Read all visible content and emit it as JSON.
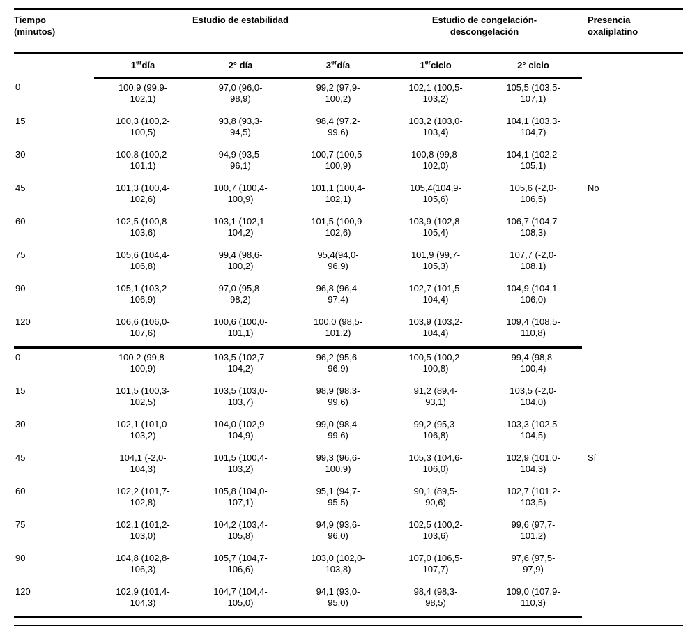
{
  "table": {
    "time_header": [
      "Tiempo",
      "(minutos)"
    ],
    "group_headers": {
      "stability": "Estudio de estabilidad",
      "freeze": [
        "Estudio de congelación-",
        "descongelación"
      ],
      "presence": [
        "Presencia",
        "oxaliplatino"
      ]
    },
    "subheaders": [
      {
        "num": "1",
        "sup": "er",
        "rest": "día"
      },
      {
        "num": "2° ",
        "sup": "",
        "rest": "día"
      },
      {
        "num": "3",
        "sup": "er",
        "rest": "día"
      },
      {
        "num": "1",
        "sup": "er",
        "rest": "ciclo"
      },
      {
        "num": "2° ",
        "sup": "",
        "rest": "ciclo"
      }
    ],
    "groups": [
      {
        "presence": "No",
        "rows": [
          {
            "time": "0",
            "cells": [
              [
                "100,9 (99,9-",
                "102,1)"
              ],
              [
                "97,0 (96,0-",
                "98,9)"
              ],
              [
                "99,2 (97,9-",
                "100,2)"
              ],
              [
                "102,1 (100,5-",
                "103,2)"
              ],
              [
                "105,5 (103,5-",
                "107,1)"
              ]
            ]
          },
          {
            "time": "15",
            "cells": [
              [
                "100,3 (100,2-",
                "100,5)"
              ],
              [
                "93,8 (93,3-",
                "94,5)"
              ],
              [
                "98,4 (97,2-",
                "99,6)"
              ],
              [
                "103,2 (103,0-",
                "103,4)"
              ],
              [
                "104,1 (103,3-",
                "104,7)"
              ]
            ]
          },
          {
            "time": "30",
            "cells": [
              [
                "100,8 (100,2-",
                "101,1)"
              ],
              [
                "94,9 (93,5-",
                "96,1)"
              ],
              [
                "100,7 (100,5-",
                "100,9)"
              ],
              [
                "100,8 (99,8-",
                "102,0)"
              ],
              [
                "104,1 (102,2-",
                "105,1)"
              ]
            ]
          },
          {
            "time": "45",
            "cells": [
              [
                "101,3 (100,4-",
                "102,6)"
              ],
              [
                "100,7 (100,4-",
                "100,9)"
              ],
              [
                "101,1 (100,4-",
                "102,1)"
              ],
              [
                "105,4(104,9-",
                "105,6)"
              ],
              [
                "105,6 (-2,0-",
                "106,5)"
              ]
            ]
          },
          {
            "time": "60",
            "cells": [
              [
                "102,5 (100,8-",
                "103,6)"
              ],
              [
                "103,1 (102,1-",
                "104,2)"
              ],
              [
                "101,5 (100,9-",
                "102,6)"
              ],
              [
                "103,9 (102,8-",
                "105,4)"
              ],
              [
                "106,7 (104,7-",
                "108,3)"
              ]
            ]
          },
          {
            "time": "75",
            "cells": [
              [
                "105,6 (104,4-",
                "106,8)"
              ],
              [
                "99,4 (98,6-",
                "100,2)"
              ],
              [
                "95,4(94,0-",
                "96,9)"
              ],
              [
                "101,9 (99,7-",
                "105,3)"
              ],
              [
                "107,7 (-2,0-",
                "108,1)"
              ]
            ]
          },
          {
            "time": "90",
            "cells": [
              [
                "105,1 (103,2-",
                "106,9)"
              ],
              [
                "97,0 (95,8-",
                "98,2)"
              ],
              [
                "96,8 (96,4-",
                "97,4)"
              ],
              [
                "102,7 (101,5-",
                "104,4)"
              ],
              [
                "104,9 (104,1-",
                "106,0)"
              ]
            ]
          },
          {
            "time": "120",
            "cells": [
              [
                "106,6 (106,0-",
                "107,6)"
              ],
              [
                "100,6 (100,0-",
                "101,1)"
              ],
              [
                "100,0 (98,5-",
                "101,2)"
              ],
              [
                "103,9 (103,2-",
                "104,4)"
              ],
              [
                "109,4 (108,5-",
                "110,8)"
              ]
            ]
          }
        ]
      },
      {
        "presence": "Sí",
        "rows": [
          {
            "time": "0",
            "cells": [
              [
                "100,2 (99,8-",
                "100,9)"
              ],
              [
                "103,5 (102,7-",
                "104,2)"
              ],
              [
                "96,2 (95,6-",
                "96,9)"
              ],
              [
                "100,5 (100,2-",
                "100,8)"
              ],
              [
                "99,4 (98,8-",
                "100,4)"
              ]
            ]
          },
          {
            "time": "15",
            "cells": [
              [
                "101,5 (100,3-",
                "102,5)"
              ],
              [
                "103,5 (103,0-",
                "103,7)"
              ],
              [
                "98,9 (98,3-",
                "99,6)"
              ],
              [
                "91,2 (89,4-",
                "93,1)"
              ],
              [
                "103,5 (-2,0-",
                "104,0)"
              ]
            ]
          },
          {
            "time": "30",
            "cells": [
              [
                "102,1 (101,0-",
                "103,2)"
              ],
              [
                "104,0 (102,9-",
                "104,9)"
              ],
              [
                "99,0 (98,4-",
                "99,6)"
              ],
              [
                "99,2 (95,3-",
                "106,8)"
              ],
              [
                "103,3 (102,5-",
                "104,5)"
              ]
            ]
          },
          {
            "time": "45",
            "cells": [
              [
                "104,1 (-2,0-",
                "104,3)"
              ],
              [
                "101,5 (100,4-",
                "103,2)"
              ],
              [
                "99,3 (96,6-",
                "100,9)"
              ],
              [
                "105,3 (104,6-",
                "106,0)"
              ],
              [
                "102,9 (101,0-",
                "104,3)"
              ]
            ]
          },
          {
            "time": "60",
            "cells": [
              [
                "102,2 (101,7-",
                "102,8)"
              ],
              [
                "105,8 (104,0-",
                "107,1)"
              ],
              [
                "95,1 (94,7-",
                "95,5)"
              ],
              [
                "90,1 (89,5-",
                "90,6)"
              ],
              [
                "102,7 (101,2-",
                "103,5)"
              ]
            ]
          },
          {
            "time": "75",
            "cells": [
              [
                "102,1 (101,2-",
                "103,0)"
              ],
              [
                "104,2 (103,4-",
                "105,8)"
              ],
              [
                "94,9 (93,6-",
                "96,0)"
              ],
              [
                "102,5 (100,2-",
                "103,6)"
              ],
              [
                "99,6 (97,7-",
                "101,2)"
              ]
            ]
          },
          {
            "time": "90",
            "cells": [
              [
                "104,8 (102,8-",
                "106,3)"
              ],
              [
                "105,7 (104,7-",
                "106,6)"
              ],
              [
                "103,0 (102,0-",
                "103,8)"
              ],
              [
                "107,0 (106,5-",
                "107,7)"
              ],
              [
                "97,6 (97,5-",
                "97,9)"
              ]
            ]
          },
          {
            "time": "120",
            "cells": [
              [
                "102,9 (101,4-",
                "104,3)"
              ],
              [
                "104,7 (104,4-",
                "105,0)"
              ],
              [
                "94,1 (93,0-",
                "95,0)"
              ],
              [
                "98,4 (98,3-",
                "98,5)"
              ],
              [
                "109,0 (107,9-",
                "110,3)"
              ]
            ]
          }
        ]
      }
    ]
  }
}
